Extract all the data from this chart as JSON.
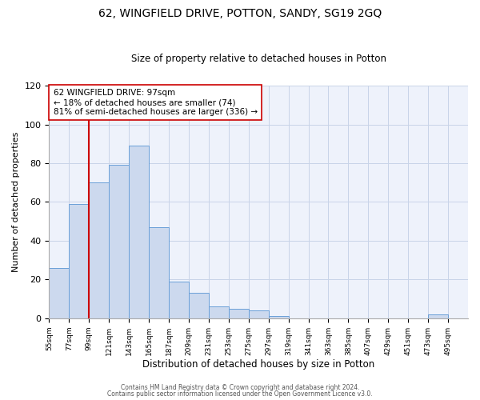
{
  "title": "62, WINGFIELD DRIVE, POTTON, SANDY, SG19 2GQ",
  "subtitle": "Size of property relative to detached houses in Potton",
  "xlabel": "Distribution of detached houses by size in Potton",
  "ylabel": "Number of detached properties",
  "bin_edges": [
    55,
    77,
    99,
    121,
    143,
    165,
    187,
    209,
    231,
    253,
    275,
    297,
    319,
    341,
    363,
    385,
    407,
    429,
    451,
    473,
    495
  ],
  "bin_counts": [
    26,
    59,
    70,
    79,
    89,
    47,
    19,
    13,
    6,
    5,
    4,
    1,
    0,
    0,
    0,
    0,
    0,
    0,
    0,
    2
  ],
  "bar_facecolor": "#ccd9ee",
  "bar_edgecolor": "#6a9fd8",
  "vline_x": 99,
  "vline_color": "#cc0000",
  "annotation_text": "62 WINGFIELD DRIVE: 97sqm\n← 18% of detached houses are smaller (74)\n81% of semi-detached houses are larger (336) →",
  "annotation_box_edgecolor": "#cc0000",
  "annotation_box_facecolor": "#ffffff",
  "ylim": [
    0,
    120
  ],
  "yticks": [
    0,
    20,
    40,
    60,
    80,
    100,
    120
  ],
  "tick_labels": [
    "55sqm",
    "77sqm",
    "99sqm",
    "121sqm",
    "143sqm",
    "165sqm",
    "187sqm",
    "209sqm",
    "231sqm",
    "253sqm",
    "275sqm",
    "297sqm",
    "319sqm",
    "341sqm",
    "363sqm",
    "385sqm",
    "407sqm",
    "429sqm",
    "451sqm",
    "473sqm",
    "495sqm"
  ],
  "footer_line1": "Contains HM Land Registry data © Crown copyright and database right 2024.",
  "footer_line2": "Contains public sector information licensed under the Open Government Licence v3.0.",
  "background_color": "#ffffff",
  "plot_bg_color": "#eef2fb",
  "grid_color": "#c8d4e8"
}
